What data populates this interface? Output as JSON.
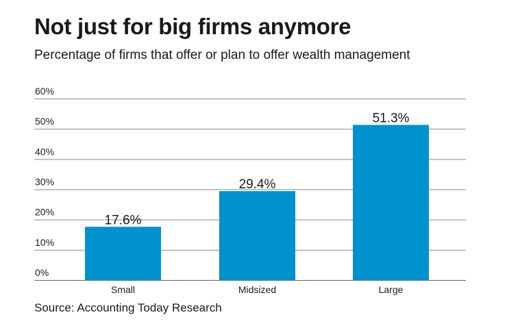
{
  "chart_data": {
    "type": "bar",
    "title": "Not just for big firms anymore",
    "subtitle": "Percentage of firms that offer or plan to offer wealth management",
    "categories": [
      "Small",
      "Midsized",
      "Large"
    ],
    "values": [
      17.6,
      29.4,
      51.3
    ],
    "data_labels": [
      "17.6%",
      "29.4%",
      "51.3%"
    ],
    "xlabel": "",
    "ylabel": "",
    "ylim": [
      0,
      60
    ],
    "yticks": [
      0,
      10,
      20,
      30,
      40,
      50,
      60
    ],
    "ytick_labels": [
      "0%",
      "10%",
      "20%",
      "30%",
      "40%",
      "50%",
      "60%"
    ],
    "grid": true,
    "bar_color": "#0092cf",
    "source": "Source: Accounting Today Research"
  }
}
